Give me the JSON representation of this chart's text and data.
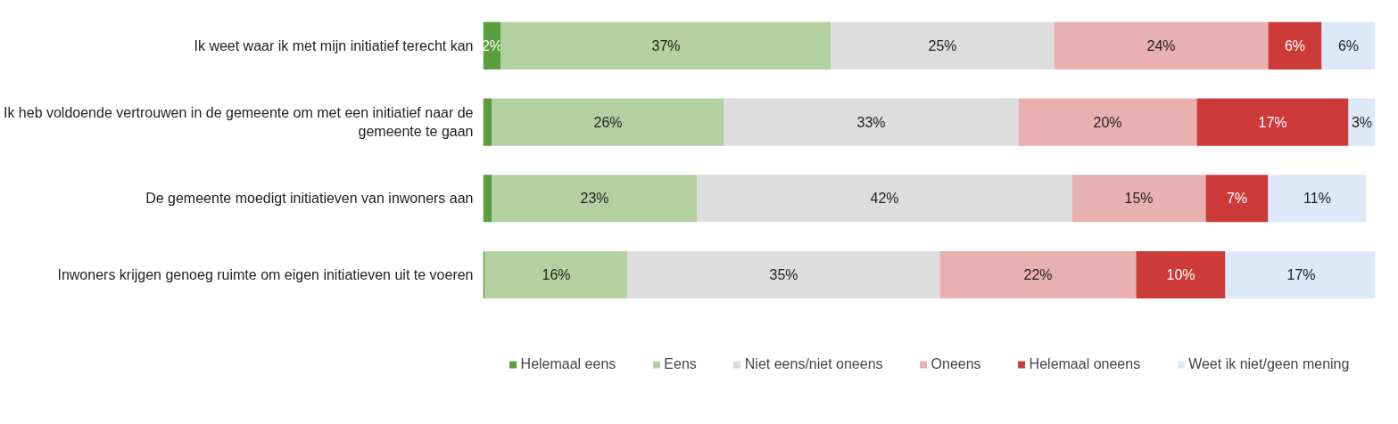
{
  "chart_data": {
    "type": "bar",
    "orientation": "horizontal",
    "stacked": true,
    "xlim": [
      0,
      100
    ],
    "tick_labels": "y",
    "grid": false,
    "legend": "bottom",
    "categories": [
      "Ik weet waar ik met mijn initiatief terecht kan",
      "Ik heb voldoende vertrouwen in de gemeente om met een initiatief naar de gemeente te gaan",
      "De gemeente moedigt initiatieven van inwoners aan",
      "Inwoners krijgen genoeg ruimte om eigen initiatieven uit te voeren"
    ],
    "series": [
      {
        "name": "Helemaal eens",
        "color": "#5a9e3c",
        "values": [
          2,
          1,
          1,
          0.2
        ],
        "value_labels": [
          "2%",
          null,
          null,
          null
        ]
      },
      {
        "name": "Eens",
        "color": "#b3d1a0",
        "values": [
          37,
          26,
          23,
          16
        ],
        "value_labels": [
          "37%",
          "26%",
          "23%",
          "16%"
        ]
      },
      {
        "name": "Niet eens/niet oneens",
        "color": "#dcdddc",
        "values": [
          25,
          33,
          42,
          35
        ],
        "value_labels": [
          "25%",
          "33%",
          "42%",
          "35%"
        ]
      },
      {
        "name": "Oneens",
        "color": "#e9b0b0",
        "values": [
          24,
          20,
          15,
          22
        ],
        "value_labels": [
          "24%",
          "20%",
          "15%",
          "22%"
        ]
      },
      {
        "name": "Helemaal oneens",
        "color": "#cc3a3a",
        "values": [
          6,
          17,
          7,
          10
        ],
        "value_labels": [
          "6%",
          "17%",
          "7%",
          "10%"
        ]
      },
      {
        "name": "Weet ik niet/geen mening",
        "color": "#dbe9f8",
        "values": [
          6,
          3,
          11,
          17
        ],
        "value_labels": [
          "6%",
          "3%",
          "11%",
          "17%"
        ]
      }
    ]
  }
}
